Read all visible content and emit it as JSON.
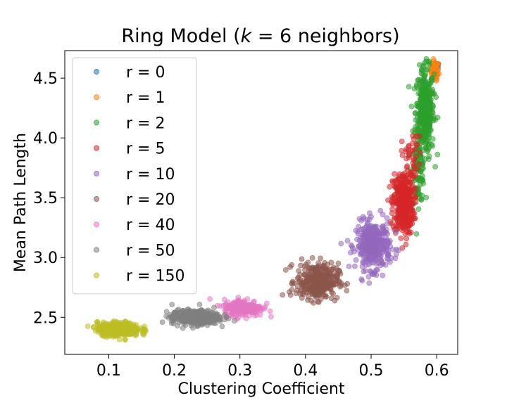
{
  "chart_data": {
    "type": "scatter",
    "title_prefix": "Ring Model (",
    "title_k": "k",
    "title_suffix": " = 6 neighbors)",
    "xlabel": "Clustering Coefficient",
    "ylabel": "Mean Path Length",
    "xlim": [
      0.033,
      0.632
    ],
    "ylim": [
      2.19,
      4.73
    ],
    "xticks": [
      0.1,
      0.2,
      0.3,
      0.4,
      0.5,
      0.6
    ],
    "xtick_labels": [
      "0.1",
      "0.2",
      "0.3",
      "0.4",
      "0.5",
      "0.6"
    ],
    "yticks": [
      2.5,
      3.0,
      3.5,
      4.0,
      4.5
    ],
    "ytick_labels": [
      "2.5",
      "3.0",
      "3.5",
      "4.0",
      "4.5"
    ],
    "grid": false,
    "legend_position": "upper-left",
    "marker_opacity": 0.55,
    "series": [
      {
        "name": "r = 0",
        "color": "#1f77b4",
        "clusters": [
          {
            "cx": 0.6,
            "cy": 4.6,
            "sx": 0.002,
            "sy": 0.015,
            "n": 20
          }
        ]
      },
      {
        "name": "r = 1",
        "color": "#ff7f0e",
        "clusters": [
          {
            "cx": 0.597,
            "cy": 4.56,
            "sx": 0.003,
            "sy": 0.04,
            "n": 60
          }
        ]
      },
      {
        "name": "r = 2",
        "color": "#2ca02c",
        "clusters": [
          {
            "cx": 0.582,
            "cy": 4.22,
            "sx": 0.007,
            "sy": 0.18,
            "n": 380
          },
          {
            "cx": 0.572,
            "cy": 3.72,
            "sx": 0.005,
            "sy": 0.13,
            "n": 90
          }
        ]
      },
      {
        "name": "r = 5",
        "color": "#d62728",
        "clusters": [
          {
            "cx": 0.549,
            "cy": 3.45,
            "sx": 0.008,
            "sy": 0.13,
            "n": 380
          },
          {
            "cx": 0.562,
            "cy": 3.85,
            "sx": 0.008,
            "sy": 0.1,
            "n": 40
          }
        ]
      },
      {
        "name": "r = 10",
        "color": "#9467bd",
        "clusters": [
          {
            "cx": 0.503,
            "cy": 3.1,
            "sx": 0.013,
            "sy": 0.1,
            "n": 360
          }
        ]
      },
      {
        "name": "r = 20",
        "color": "#8c564b",
        "clusters": [
          {
            "cx": 0.418,
            "cy": 2.8,
            "sx": 0.016,
            "sy": 0.075,
            "n": 340
          }
        ]
      },
      {
        "name": "r = 40",
        "color": "#e377c2",
        "clusters": [
          {
            "cx": 0.305,
            "cy": 2.58,
            "sx": 0.015,
            "sy": 0.035,
            "n": 220
          }
        ]
      },
      {
        "name": "r = 50",
        "color": "#7f7f7f",
        "clusters": [
          {
            "cx": 0.232,
            "cy": 2.5,
            "sx": 0.018,
            "sy": 0.03,
            "n": 420
          }
        ]
      },
      {
        "name": "r = 150",
        "color": "#bcbd22",
        "clusters": [
          {
            "cx": 0.115,
            "cy": 2.4,
            "sx": 0.016,
            "sy": 0.028,
            "n": 420
          }
        ]
      }
    ]
  }
}
